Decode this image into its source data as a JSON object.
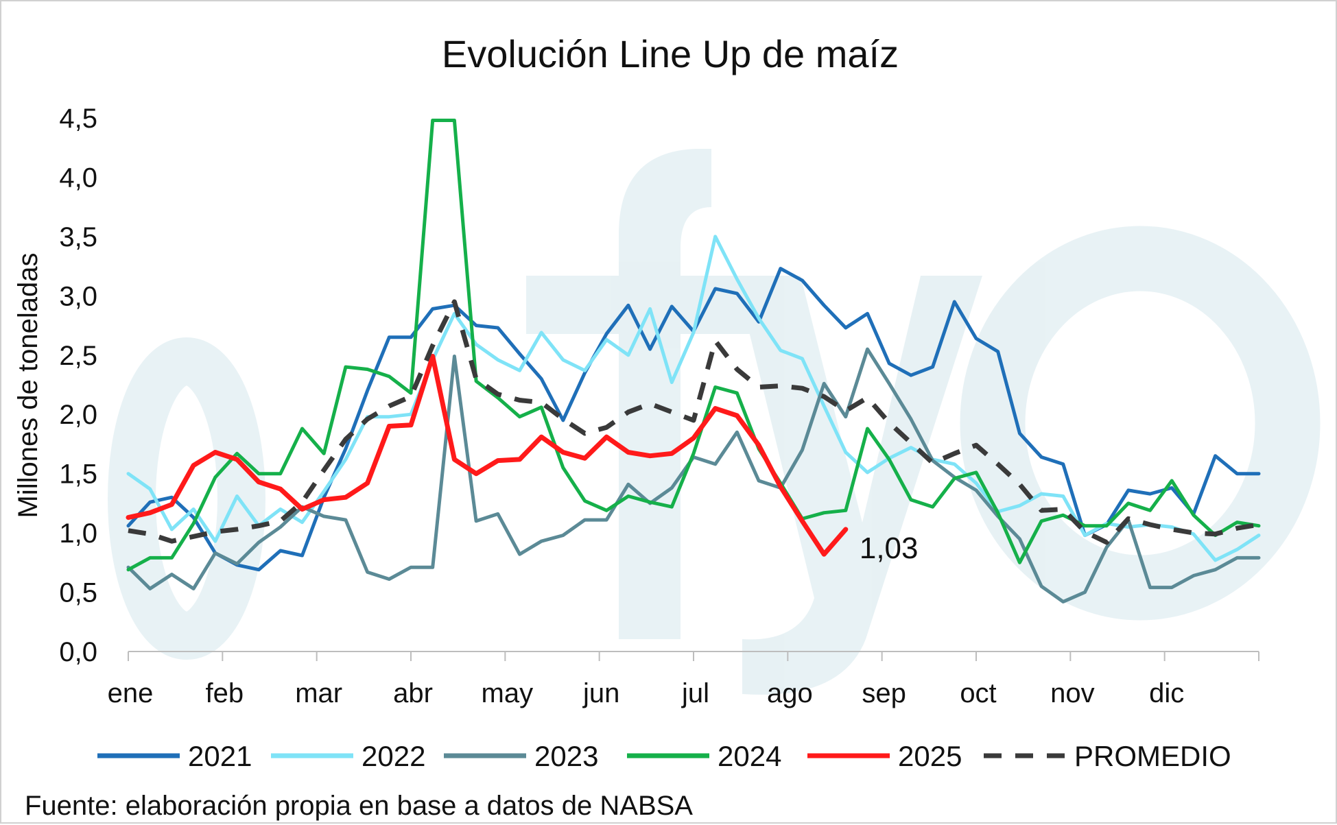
{
  "chart_data": {
    "type": "line",
    "title": "Evolución Line Up de maíz",
    "ylabel": "Millones de toneladas",
    "xlabel": "",
    "ylim": [
      0,
      4.5
    ],
    "yticks": [
      "0,0",
      "0,5",
      "1,0",
      "1,5",
      "2,0",
      "2,5",
      "3,0",
      "3,5",
      "4,0",
      "4,5"
    ],
    "months": [
      "ene",
      "feb",
      "mar",
      "abr",
      "may",
      "jun",
      "jul",
      "ago",
      "sep",
      "oct",
      "nov",
      "dic"
    ],
    "grid": false,
    "legend_position": "bottom",
    "source": "Fuente: elaboración propia en base a datos de NABSA",
    "watermark": "ofyo",
    "end_annotation": {
      "series": "2025",
      "text": "1,03"
    },
    "series": [
      {
        "name": "2021",
        "color": "#1f6fb8",
        "dashed": false,
        "values": [
          1.06,
          1.26,
          1.3,
          1.13,
          0.83,
          0.73,
          0.69,
          0.85,
          0.81,
          1.3,
          1.71,
          2.2,
          2.65,
          2.65,
          2.89,
          2.92,
          2.75,
          2.73,
          2.51,
          2.3,
          1.95,
          2.35,
          2.68,
          2.92,
          2.55,
          2.91,
          2.7,
          3.06,
          3.02,
          2.78,
          3.23,
          3.13,
          2.92,
          2.73,
          2.85,
          2.43,
          2.33,
          2.4,
          2.95,
          2.64,
          2.53,
          1.84,
          1.64,
          1.58,
          0.98,
          1.07,
          1.36,
          1.33,
          1.38,
          1.16,
          1.65,
          1.5,
          1.5
        ]
      },
      {
        "name": "2022",
        "color": "#7fe3f7",
        "dashed": false,
        "values": [
          1.5,
          1.37,
          1.03,
          1.2,
          0.93,
          1.31,
          1.06,
          1.2,
          1.09,
          1.35,
          1.62,
          1.98,
          1.98,
          2.0,
          2.46,
          2.85,
          2.59,
          2.46,
          2.37,
          2.69,
          2.46,
          2.37,
          2.63,
          2.5,
          2.89,
          2.27,
          2.69,
          3.5,
          3.14,
          2.81,
          2.54,
          2.47,
          2.07,
          1.68,
          1.51,
          1.63,
          1.72,
          1.62,
          1.58,
          1.42,
          1.18,
          1.23,
          1.33,
          1.31,
          0.98,
          1.08,
          1.05,
          1.07,
          1.05,
          0.99,
          0.77,
          0.86,
          0.98
        ]
      },
      {
        "name": "2023",
        "color": "#5b8a96",
        "dashed": false,
        "values": [
          0.71,
          0.53,
          0.65,
          0.53,
          0.83,
          0.74,
          0.92,
          1.05,
          1.22,
          1.14,
          1.11,
          0.67,
          0.61,
          0.71,
          0.71,
          2.49,
          1.1,
          1.16,
          0.82,
          0.93,
          0.98,
          1.11,
          1.11,
          1.41,
          1.25,
          1.38,
          1.64,
          1.58,
          1.85,
          1.44,
          1.38,
          1.7,
          2.26,
          1.98,
          2.55,
          2.26,
          1.96,
          1.61,
          1.47,
          1.36,
          1.14,
          0.95,
          0.55,
          0.42,
          0.5,
          0.88,
          1.11,
          0.54,
          0.54,
          0.64,
          0.69,
          0.79,
          0.79
        ]
      },
      {
        "name": "2024",
        "color": "#15b04a",
        "dashed": false,
        "values": [
          0.69,
          0.79,
          0.79,
          1.08,
          1.47,
          1.67,
          1.5,
          1.5,
          1.88,
          1.67,
          2.4,
          2.38,
          2.32,
          2.18,
          4.48,
          4.48,
          2.28,
          2.14,
          1.98,
          2.06,
          1.55,
          1.27,
          1.19,
          1.31,
          1.26,
          1.22,
          1.67,
          2.23,
          2.18,
          1.71,
          1.42,
          1.12,
          1.17,
          1.19,
          1.88,
          1.62,
          1.28,
          1.22,
          1.46,
          1.51,
          1.17,
          0.75,
          1.1,
          1.15,
          1.06,
          1.06,
          1.25,
          1.19,
          1.44,
          1.15,
          0.98,
          1.09,
          1.06
        ]
      },
      {
        "name": "2025",
        "color": "#ff1a1a",
        "dashed": false,
        "values": [
          1.13,
          1.17,
          1.24,
          1.57,
          1.68,
          1.62,
          1.43,
          1.37,
          1.2,
          1.28,
          1.3,
          1.42,
          1.9,
          1.91,
          2.49,
          1.62,
          1.5,
          1.61,
          1.62,
          1.81,
          1.68,
          1.63,
          1.81,
          1.68,
          1.65,
          1.67,
          1.8,
          2.05,
          1.99,
          1.74,
          1.39,
          1.1,
          0.82,
          1.03
        ]
      },
      {
        "name": "PROMEDIO",
        "color": "#3a3a3a",
        "dashed": true,
        "values": [
          1.02,
          0.99,
          0.93,
          0.97,
          1.01,
          1.03,
          1.06,
          1.1,
          1.26,
          1.53,
          1.79,
          1.96,
          2.07,
          2.15,
          2.58,
          2.95,
          2.3,
          2.17,
          2.12,
          2.1,
          1.96,
          1.84,
          1.89,
          2.02,
          2.09,
          2.02,
          1.95,
          2.62,
          2.38,
          2.23,
          2.24,
          2.22,
          2.15,
          2.03,
          2.14,
          1.93,
          1.76,
          1.59,
          1.67,
          1.74,
          1.58,
          1.41,
          1.19,
          1.2,
          1.01,
          0.92,
          1.12,
          1.07,
          1.03,
          1.0,
          0.99,
          1.04,
          1.07
        ]
      }
    ]
  }
}
